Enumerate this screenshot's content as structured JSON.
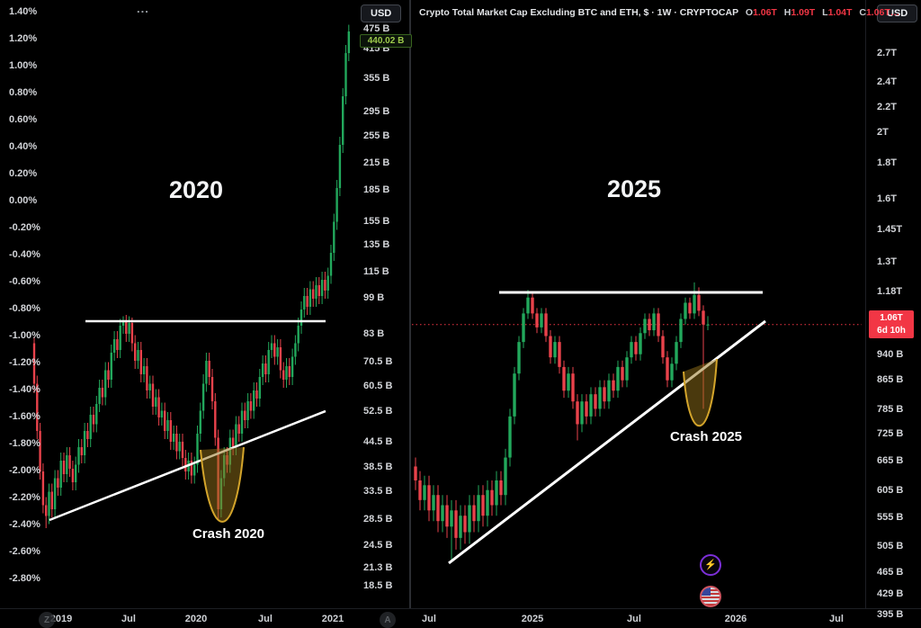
{
  "ui": {
    "left_panel": {
      "legend_overflow": "...",
      "usd_button": "USD",
      "replay_badge": "Z",
      "autoscroll_badge": "A"
    },
    "right_panel": {
      "title": "Crypto Total Market Cap Excluding BTC and ETH, $ · 1W · CRYPTOCAP",
      "ohlc": {
        "o_label": "O",
        "o_value": "1.06T",
        "h_label": "H",
        "h_value": "1.09T",
        "l_label": "L",
        "l_value": "1.04T",
        "c_label": "C",
        "c_value": "1.06T…"
      },
      "usd_button": "USD"
    },
    "icons": {
      "lightning_glyph": "⚡"
    }
  },
  "colors": {
    "up": "#22a85c",
    "down": "#e9424b",
    "price_line": "#f23645",
    "drawing_white": "#ffffff",
    "crash_fill": "rgba(148,114,25,0.5)",
    "crash_stroke": "#d3a42b"
  },
  "chart_data": [
    {
      "type": "candlestick",
      "panel": "left",
      "title_annotation": "2020",
      "crash_annotation": "Crash 2020",
      "last_price": "440.02 B",
      "x_axis_ticks": [
        "2019",
        "Jul",
        "2020",
        "Jul",
        "2021"
      ],
      "y_axis_left_ticks_percent": [
        "1.40%",
        "1.20%",
        "1.00%",
        "0.80%",
        "0.60%",
        "0.40%",
        "0.20%",
        "0.00%",
        "-0.20%",
        "-0.40%",
        "-0.60%",
        "-0.80%",
        "-1.00%",
        "-1.20%",
        "-1.40%",
        "-1.60%",
        "-1.80%",
        "-2.00%",
        "-2.20%",
        "-2.40%",
        "-2.60%",
        "-2.80%"
      ],
      "y_axis_right_ticks": [
        "475 B",
        "415 B",
        "355 B",
        "295 B",
        "255 B",
        "215 B",
        "185 B",
        "155 B",
        "135 B",
        "115 B",
        "99 B",
        "83 B",
        "70.5 B",
        "60.5 B",
        "52.5 B",
        "44.5 B",
        "38.5 B",
        "33.5 B",
        "28.5 B",
        "24.5 B",
        "21.3 B",
        "18.5 B"
      ],
      "overlays": {
        "horizontal_resistance_percent": -0.887,
        "ascending_support_percent_start": -2.36,
        "ascending_support_percent_end": -1.553,
        "crash_marker": "parabola"
      },
      "candles_ohlc_percent": [
        [
          -1.05,
          -1.0,
          -1.42,
          -1.35
        ],
        [
          -1.35,
          -1.29,
          -1.76,
          -1.7
        ],
        [
          -1.7,
          -1.64,
          -2.06,
          -2.0
        ],
        [
          -2.0,
          -1.94,
          -2.31,
          -2.25
        ],
        [
          -2.25,
          -2.19,
          -2.42,
          -2.33
        ],
        [
          -2.33,
          -2.09,
          -2.39,
          -2.15
        ],
        [
          -2.15,
          -2.09,
          -2.34,
          -2.28
        ],
        [
          -2.28,
          -1.99,
          -2.34,
          -2.05
        ],
        [
          -2.05,
          -1.99,
          -2.18,
          -2.12
        ],
        [
          -2.12,
          -1.86,
          -2.18,
          -1.92
        ],
        [
          -1.92,
          -1.86,
          -2.08,
          -2.02
        ],
        [
          -2.02,
          -1.82,
          -2.08,
          -1.88
        ],
        [
          -1.88,
          -1.82,
          -2.04,
          -1.98
        ],
        [
          -1.98,
          -1.92,
          -2.14,
          -2.08
        ],
        [
          -2.08,
          -1.89,
          -2.14,
          -1.95
        ],
        [
          -1.95,
          -1.76,
          -2.01,
          -1.82
        ],
        [
          -1.82,
          -1.76,
          -1.94,
          -1.88
        ],
        [
          -1.88,
          -1.64,
          -1.94,
          -1.7
        ],
        [
          -1.7,
          -1.64,
          -1.82,
          -1.76
        ],
        [
          -1.76,
          -1.52,
          -1.82,
          -1.58
        ],
        [
          -1.58,
          -1.52,
          -1.71,
          -1.65
        ],
        [
          -1.65,
          -1.44,
          -1.71,
          -1.5
        ],
        [
          -1.5,
          -1.32,
          -1.56,
          -1.38
        ],
        [
          -1.38,
          -1.32,
          -1.51,
          -1.45
        ],
        [
          -1.45,
          -1.19,
          -1.51,
          -1.25
        ],
        [
          -1.25,
          -1.19,
          -1.38,
          -1.32
        ],
        [
          -1.32,
          -1.06,
          -1.38,
          -1.12
        ],
        [
          -1.12,
          -0.96,
          -1.18,
          -1.02
        ],
        [
          -1.02,
          -0.96,
          -1.16,
          -1.1
        ],
        [
          -1.1,
          -0.87,
          -1.16,
          -0.92
        ],
        [
          -0.92,
          -0.85,
          -0.98,
          -0.88
        ],
        [
          -0.88,
          -0.84,
          -1.04,
          -0.98
        ],
        [
          -0.98,
          -0.85,
          -1.04,
          -0.9
        ],
        [
          -0.9,
          -0.86,
          -1.11,
          -1.05
        ],
        [
          -1.05,
          -0.99,
          -1.24,
          -1.18
        ],
        [
          -1.18,
          -1.04,
          -1.24,
          -1.1
        ],
        [
          -1.1,
          -1.04,
          -1.34,
          -1.28
        ],
        [
          -1.28,
          -1.16,
          -1.34,
          -1.22
        ],
        [
          -1.22,
          -1.16,
          -1.46,
          -1.4
        ],
        [
          -1.4,
          -1.29,
          -1.46,
          -1.35
        ],
        [
          -1.35,
          -1.29,
          -1.58,
          -1.52
        ],
        [
          -1.52,
          -1.39,
          -1.58,
          -1.45
        ],
        [
          -1.45,
          -1.39,
          -1.66,
          -1.6
        ],
        [
          -1.6,
          -1.49,
          -1.66,
          -1.55
        ],
        [
          -1.55,
          -1.49,
          -1.76,
          -1.7
        ],
        [
          -1.7,
          -1.56,
          -1.76,
          -1.62
        ],
        [
          -1.62,
          -1.56,
          -1.84,
          -1.78
        ],
        [
          -1.78,
          -1.66,
          -1.84,
          -1.72
        ],
        [
          -1.72,
          -1.66,
          -1.91,
          -1.85
        ],
        [
          -1.85,
          -1.72,
          -1.91,
          -1.78
        ],
        [
          -1.78,
          -1.72,
          -1.96,
          -1.9
        ],
        [
          -1.9,
          -1.84,
          -2.06,
          -2.0
        ],
        [
          -2.0,
          -1.86,
          -2.06,
          -1.92
        ],
        [
          -1.92,
          -1.86,
          -2.09,
          -2.03
        ],
        [
          -2.03,
          -1.89,
          -2.09,
          -1.95
        ],
        [
          -1.95,
          -1.66,
          -2.01,
          -1.72
        ],
        [
          -1.72,
          -1.49,
          -1.78,
          -1.55
        ],
        [
          -1.55,
          -1.28,
          -1.61,
          -1.35
        ],
        [
          -1.35,
          -1.12,
          -1.41,
          -1.18
        ],
        [
          -1.18,
          -1.12,
          -1.36,
          -1.3
        ],
        [
          -1.3,
          -1.24,
          -1.54,
          -1.48
        ],
        [
          -1.48,
          -1.42,
          -1.81,
          -1.75
        ],
        [
          -1.75,
          -1.69,
          -2.36,
          -2.28
        ],
        [
          -2.28,
          -1.99,
          -2.34,
          -2.05
        ],
        [
          -2.05,
          -1.82,
          -2.11,
          -1.88
        ],
        [
          -1.88,
          -1.82,
          -2.01,
          -1.95
        ],
        [
          -1.95,
          -1.69,
          -2.01,
          -1.75
        ],
        [
          -1.75,
          -1.69,
          -1.88,
          -1.82
        ],
        [
          -1.82,
          -1.59,
          -1.88,
          -1.65
        ],
        [
          -1.65,
          -1.59,
          -1.78,
          -1.72
        ],
        [
          -1.72,
          -1.49,
          -1.78,
          -1.55
        ],
        [
          -1.55,
          -1.49,
          -1.68,
          -1.62
        ],
        [
          -1.62,
          -1.42,
          -1.68,
          -1.48
        ],
        [
          -1.48,
          -1.42,
          -1.61,
          -1.55
        ],
        [
          -1.55,
          -1.34,
          -1.61,
          -1.4
        ],
        [
          -1.4,
          -1.34,
          -1.52,
          -1.46
        ],
        [
          -1.46,
          -1.24,
          -1.52,
          -1.3
        ],
        [
          -1.3,
          -1.14,
          -1.36,
          -1.2
        ],
        [
          -1.2,
          -1.14,
          -1.34,
          -1.28
        ],
        [
          -1.28,
          -1.04,
          -1.34,
          -1.1
        ],
        [
          -1.1,
          -0.99,
          -1.16,
          -1.05
        ],
        [
          -1.05,
          -0.99,
          -1.21,
          -1.15
        ],
        [
          -1.15,
          -1.02,
          -1.21,
          -1.08
        ],
        [
          -1.08,
          -1.02,
          -1.31,
          -1.25
        ],
        [
          -1.25,
          -1.19,
          -1.38,
          -1.32
        ],
        [
          -1.32,
          -1.16,
          -1.38,
          -1.22
        ],
        [
          -1.22,
          -1.16,
          -1.36,
          -1.3
        ],
        [
          -1.3,
          -1.09,
          -1.36,
          -1.15
        ],
        [
          -1.15,
          -0.99,
          -1.21,
          -1.05
        ],
        [
          -1.05,
          -0.86,
          -1.11,
          -0.92
        ],
        [
          -0.92,
          -0.74,
          -0.98,
          -0.8
        ],
        [
          -0.8,
          -0.64,
          -0.86,
          -0.7
        ],
        [
          -0.7,
          -0.64,
          -0.84,
          -0.78
        ],
        [
          -0.78,
          -0.59,
          -0.84,
          -0.65
        ],
        [
          -0.65,
          -0.59,
          -0.78,
          -0.72
        ],
        [
          -0.72,
          -0.56,
          -0.78,
          -0.62
        ],
        [
          -0.62,
          -0.56,
          -0.76,
          -0.7
        ],
        [
          -0.7,
          -0.52,
          -0.76,
          -0.58
        ],
        [
          -0.58,
          -0.52,
          -0.72,
          -0.66
        ],
        [
          -0.66,
          -0.49,
          -0.72,
          -0.55
        ],
        [
          -0.55,
          -0.32,
          -0.61,
          -0.38
        ],
        [
          -0.38,
          -0.09,
          -0.44,
          -0.15
        ],
        [
          -0.15,
          0.16,
          -0.21,
          0.1
        ],
        [
          0.1,
          0.48,
          0.04,
          0.42
        ],
        [
          0.42,
          0.84,
          0.36,
          0.78
        ],
        [
          0.78,
          1.16,
          0.72,
          1.1
        ],
        [
          1.1,
          1.31,
          1.04,
          1.26
        ]
      ]
    },
    {
      "type": "candlestick",
      "panel": "right",
      "symbol": "CRYPTOCAP",
      "timeframe": "1W",
      "title_annotation": "2025",
      "crash_annotation": "Crash 2025",
      "last_price": "1.06T",
      "countdown": "6d 10h",
      "current_ohlc_trillions": {
        "open": 1.06,
        "high": 1.09,
        "low": 1.04,
        "close": 1.06
      },
      "x_axis_ticks": [
        "Jul",
        "2025",
        "Jul",
        "2026",
        "Jul"
      ],
      "y_axis_right_ticks": [
        "2.7T",
        "2.4T",
        "2.2T",
        "2T",
        "1.8T",
        "1.6T",
        "1.45T",
        "1.3T",
        "1.18T",
        "940 B",
        "865 B",
        "785 B",
        "725 B",
        "665 B",
        "605 B",
        "555 B",
        "505 B",
        "465 B",
        "429 B",
        "395 B"
      ],
      "overlays": {
        "horizontal_resistance_trillions": 1.18,
        "ascending_support_trillions_start": 0.478,
        "ascending_support_trillions_end": 1.072,
        "last_price_line_trillions": 1.06,
        "crash_marker": "parabola"
      },
      "candles_ohlc_trillions": [
        [
          0.66,
          0.68,
          0.61,
          0.63
        ],
        [
          0.63,
          0.65,
          0.57,
          0.59
        ],
        [
          0.59,
          0.64,
          0.57,
          0.62
        ],
        [
          0.62,
          0.64,
          0.55,
          0.57
        ],
        [
          0.57,
          0.62,
          0.55,
          0.6
        ],
        [
          0.6,
          0.62,
          0.53,
          0.55
        ],
        [
          0.55,
          0.6,
          0.53,
          0.58
        ],
        [
          0.58,
          0.6,
          0.52,
          0.54
        ],
        [
          0.54,
          0.59,
          0.48,
          0.57
        ],
        [
          0.57,
          0.59,
          0.5,
          0.52
        ],
        [
          0.52,
          0.58,
          0.5,
          0.56
        ],
        [
          0.56,
          0.58,
          0.51,
          0.53
        ],
        [
          0.53,
          0.6,
          0.51,
          0.58
        ],
        [
          0.58,
          0.6,
          0.53,
          0.55
        ],
        [
          0.55,
          0.62,
          0.53,
          0.6
        ],
        [
          0.6,
          0.62,
          0.54,
          0.56
        ],
        [
          0.56,
          0.63,
          0.54,
          0.61
        ],
        [
          0.61,
          0.63,
          0.56,
          0.58
        ],
        [
          0.58,
          0.65,
          0.56,
          0.63
        ],
        [
          0.63,
          0.65,
          0.58,
          0.6
        ],
        [
          0.6,
          0.7,
          0.58,
          0.68
        ],
        [
          0.68,
          0.8,
          0.66,
          0.78
        ],
        [
          0.78,
          0.92,
          0.76,
          0.9
        ],
        [
          0.9,
          1.02,
          0.88,
          1.0
        ],
        [
          1.0,
          1.12,
          0.98,
          1.1
        ],
        [
          1.1,
          1.19,
          1.08,
          1.16
        ],
        [
          1.16,
          1.18,
          1.08,
          1.1
        ],
        [
          1.1,
          1.12,
          1.03,
          1.05
        ],
        [
          1.05,
          1.12,
          1.03,
          1.1
        ],
        [
          1.1,
          1.12,
          1.0,
          1.02
        ],
        [
          1.02,
          1.04,
          0.93,
          0.95
        ],
        [
          0.95,
          1.02,
          0.93,
          1.0
        ],
        [
          1.0,
          1.02,
          0.9,
          0.92
        ],
        [
          0.92,
          0.94,
          0.83,
          0.85
        ],
        [
          0.85,
          0.92,
          0.83,
          0.9
        ],
        [
          0.9,
          0.92,
          0.8,
          0.82
        ],
        [
          0.82,
          0.84,
          0.72,
          0.76
        ],
        [
          0.76,
          0.84,
          0.74,
          0.82
        ],
        [
          0.82,
          0.84,
          0.76,
          0.78
        ],
        [
          0.78,
          0.86,
          0.76,
          0.84
        ],
        [
          0.84,
          0.86,
          0.78,
          0.8
        ],
        [
          0.8,
          0.88,
          0.78,
          0.86
        ],
        [
          0.86,
          0.88,
          0.8,
          0.82
        ],
        [
          0.82,
          0.9,
          0.8,
          0.88
        ],
        [
          0.88,
          0.9,
          0.83,
          0.85
        ],
        [
          0.85,
          0.94,
          0.83,
          0.92
        ],
        [
          0.92,
          0.94,
          0.86,
          0.88
        ],
        [
          0.88,
          0.97,
          0.86,
          0.95
        ],
        [
          0.95,
          1.02,
          0.93,
          1.0
        ],
        [
          1.0,
          1.02,
          0.94,
          0.96
        ],
        [
          0.96,
          1.05,
          0.94,
          1.03
        ],
        [
          1.03,
          1.1,
          1.01,
          1.08
        ],
        [
          1.08,
          1.1,
          1.02,
          1.04
        ],
        [
          1.04,
          1.12,
          1.02,
          1.1
        ],
        [
          1.1,
          1.12,
          1.0,
          1.02
        ],
        [
          1.02,
          1.04,
          0.93,
          0.95
        ],
        [
          0.95,
          0.97,
          0.86,
          0.88
        ],
        [
          0.88,
          0.95,
          0.86,
          0.93
        ],
        [
          0.93,
          1.02,
          0.91,
          1.0
        ],
        [
          1.0,
          1.1,
          0.98,
          1.08
        ],
        [
          1.08,
          1.16,
          1.06,
          1.14
        ],
        [
          1.14,
          1.16,
          1.08,
          1.1
        ],
        [
          1.1,
          1.22,
          1.08,
          1.17
        ],
        [
          1.17,
          1.2,
          1.09,
          1.11
        ],
        [
          1.11,
          1.13,
          0.8,
          1.06
        ],
        [
          1.06,
          1.09,
          1.04,
          1.06
        ]
      ]
    }
  ]
}
